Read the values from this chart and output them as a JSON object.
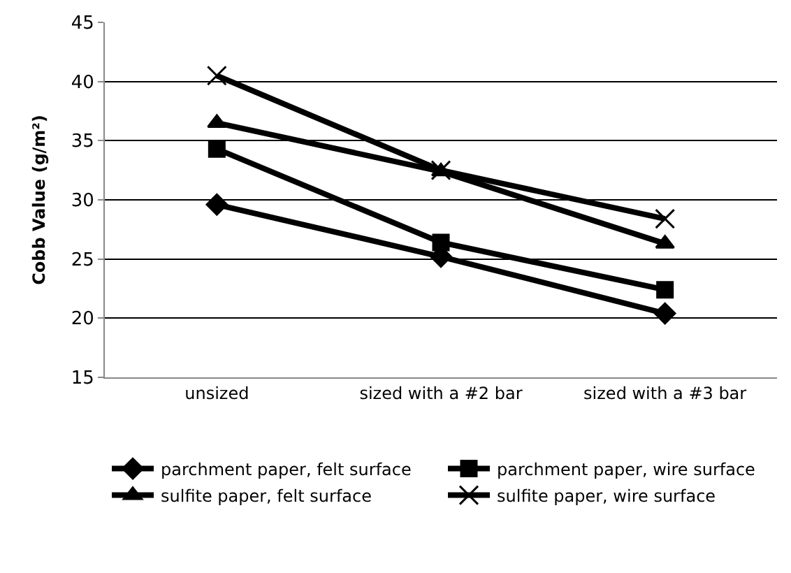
{
  "chart_data": {
    "type": "line",
    "ylabel": "Cobb Value (g/m²)",
    "categories": [
      "unsized",
      "sized with a #2 bar",
      "sized with a #3 bar"
    ],
    "series": [
      {
        "name": "parchment paper, felt surface",
        "color": "#000000",
        "marker": "diamond",
        "values": [
          29.6,
          25.2,
          20.4
        ]
      },
      {
        "name": "parchment paper, wire surface",
        "color": "#000000",
        "marker": "square",
        "values": [
          34.3,
          26.4,
          22.4
        ]
      },
      {
        "name": "sulfite paper, felt surface",
        "color": "#000000",
        "marker": "triangle",
        "values": [
          36.5,
          32.4,
          26.3
        ]
      },
      {
        "name": "sulfite paper, wire surface",
        "color": "#000000",
        "marker": "cross",
        "values": [
          40.5,
          32.5,
          28.4
        ]
      }
    ],
    "ylim": [
      15,
      45
    ],
    "yticks": [
      15,
      20,
      25,
      30,
      35,
      40,
      45
    ],
    "grid": "y",
    "legend": "bottom"
  }
}
